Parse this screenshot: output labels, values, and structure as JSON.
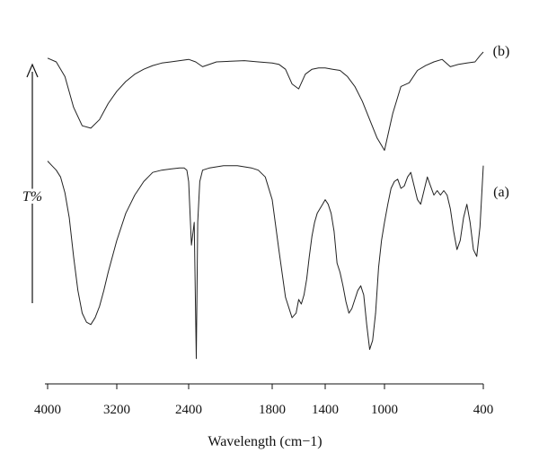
{
  "chart_data": {
    "type": "line",
    "xlabel": "Wavelength (cm−1)",
    "ylabel": "T%",
    "x_ticks": [
      "4000",
      "3200",
      "2400",
      "1800",
      "1400",
      "1000",
      "400"
    ],
    "grid": false,
    "series": [
      {
        "name": "(b)",
        "x": [
          "4000",
          "3900",
          "3800",
          "3700",
          "3600",
          "3500",
          "3400",
          "3300",
          "3200",
          "3100",
          "3000",
          "2900",
          "2800",
          "2700",
          "2600",
          "2500",
          "2400",
          "2350",
          "2300",
          "2200",
          "2000",
          "1900",
          "1800",
          "1750",
          "1700",
          "1650",
          "1600",
          "1550",
          "1500",
          "1450",
          "1400",
          "1350",
          "1300",
          "1250",
          "1200",
          "1150",
          "1100",
          "1050",
          "1000",
          "950",
          "900",
          "850",
          "800",
          "750",
          "700",
          "650",
          "600",
          "550",
          "500",
          "450",
          "420",
          "400"
        ],
        "t": [
          0.95,
          0.92,
          0.8,
          0.55,
          0.4,
          0.38,
          0.45,
          0.58,
          0.68,
          0.76,
          0.82,
          0.86,
          0.89,
          0.91,
          0.92,
          0.93,
          0.94,
          0.92,
          0.88,
          0.92,
          0.93,
          0.92,
          0.91,
          0.9,
          0.86,
          0.74,
          0.7,
          0.82,
          0.86,
          0.87,
          0.87,
          0.86,
          0.85,
          0.8,
          0.72,
          0.6,
          0.45,
          0.3,
          0.2,
          0.5,
          0.72,
          0.75,
          0.85,
          0.89,
          0.92,
          0.94,
          0.88,
          0.9,
          0.91,
          0.92,
          0.97,
          1.0
        ]
      },
      {
        "name": "(a)",
        "x": [
          "4000",
          "3950",
          "3900",
          "3850",
          "3800",
          "3750",
          "3700",
          "3650",
          "3600",
          "3550",
          "3500",
          "3450",
          "3400",
          "3350",
          "3300",
          "3250",
          "3200",
          "3150",
          "3100",
          "3050",
          "3000",
          "2950",
          "2900",
          "2850",
          "2800",
          "2700",
          "2600",
          "2500",
          "2450",
          "2420",
          "2400",
          "2380",
          "2360",
          "2345",
          "2335",
          "2320",
          "2300",
          "2250",
          "2150",
          "2050",
          "1950",
          "1900",
          "1850",
          "1800",
          "1750",
          "1700",
          "1650",
          "1620",
          "1600",
          "1580",
          "1560",
          "1540",
          "1520",
          "1500",
          "1480",
          "1460",
          "1440",
          "1420",
          "1400",
          "1380",
          "1360",
          "1340",
          "1320",
          "1300",
          "1280",
          "1260",
          "1240",
          "1220",
          "1200",
          "1180",
          "1160",
          "1140",
          "1120",
          "1100",
          "1080",
          "1060",
          "1040",
          "1020",
          "1000",
          "980",
          "960",
          "940",
          "920",
          "900",
          "880",
          "860",
          "840",
          "820",
          "800",
          "780",
          "760",
          "740",
          "720",
          "700",
          "680",
          "660",
          "640",
          "620",
          "600",
          "580",
          "560",
          "540",
          "520",
          "500",
          "480",
          "460",
          "440",
          "420",
          "400"
        ],
        "t": [
          0.97,
          0.95,
          0.93,
          0.9,
          0.83,
          0.72,
          0.55,
          0.4,
          0.3,
          0.26,
          0.25,
          0.28,
          0.33,
          0.4,
          0.48,
          0.55,
          0.62,
          0.68,
          0.74,
          0.78,
          0.82,
          0.85,
          0.88,
          0.9,
          0.92,
          0.93,
          0.935,
          0.94,
          0.94,
          0.93,
          0.88,
          0.6,
          0.7,
          0.1,
          0.7,
          0.88,
          0.93,
          0.94,
          0.95,
          0.95,
          0.94,
          0.93,
          0.9,
          0.8,
          0.58,
          0.37,
          0.28,
          0.3,
          0.36,
          0.34,
          0.38,
          0.45,
          0.55,
          0.64,
          0.7,
          0.74,
          0.76,
          0.78,
          0.8,
          0.78,
          0.74,
          0.66,
          0.52,
          0.48,
          0.42,
          0.35,
          0.3,
          0.32,
          0.36,
          0.4,
          0.42,
          0.38,
          0.25,
          0.14,
          0.18,
          0.3,
          0.5,
          0.62,
          0.7,
          0.78,
          0.85,
          0.88,
          0.89,
          0.85,
          0.86,
          0.9,
          0.92,
          0.86,
          0.8,
          0.78,
          0.84,
          0.9,
          0.86,
          0.82,
          0.84,
          0.82,
          0.84,
          0.82,
          0.76,
          0.66,
          0.58,
          0.62,
          0.72,
          0.78,
          0.7,
          0.58,
          0.55,
          0.68,
          0.95
        ]
      }
    ]
  }
}
